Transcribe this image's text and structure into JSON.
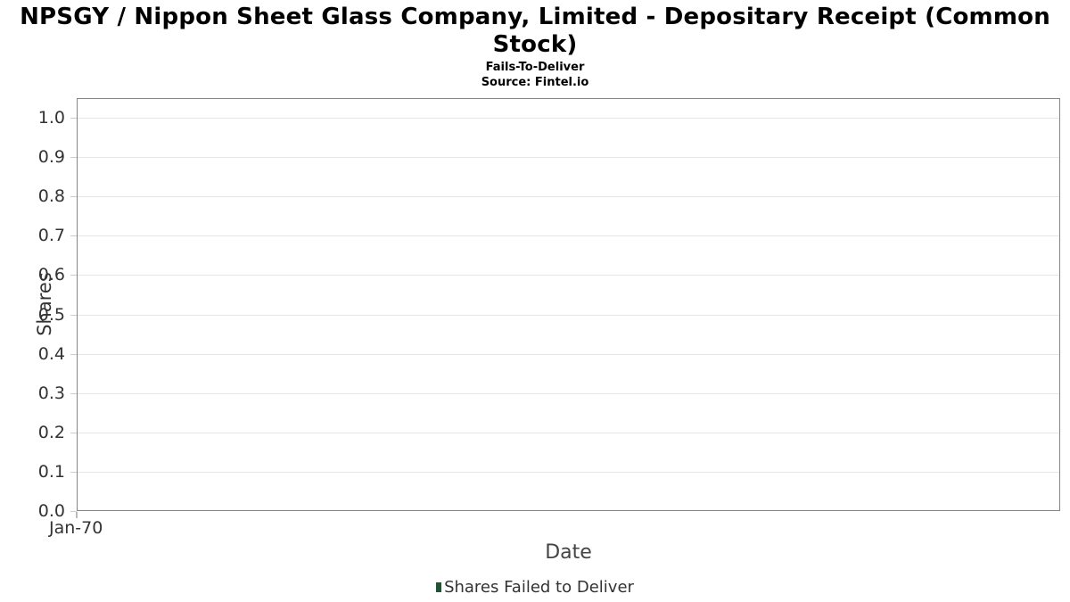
{
  "chart_data": {
    "type": "bar",
    "title": "NPSGY / Nippon Sheet Glass Company, Limited - Depositary Receipt (Common Stock)",
    "title_lines": [
      "NPSGY / Nippon Sheet Glass Company, Limited - Depositary Receipt (Common",
      "Stock)"
    ],
    "subtitle": "Fails-To-Deliver",
    "source": "Source: Fintel.io",
    "xlabel": "Date",
    "ylabel": "Shares",
    "x_ticks": [
      "Jan-70"
    ],
    "y_ticks": [
      "0.0",
      "0.1",
      "0.2",
      "0.3",
      "0.4",
      "0.5",
      "0.6",
      "0.7",
      "0.8",
      "0.9",
      "1.0"
    ],
    "ylim": [
      0,
      1.05
    ],
    "grid": true,
    "legend_position": "bottom",
    "series": [
      {
        "name": "Shares Failed to Deliver",
        "type": "bar",
        "color": "#1e5631",
        "x": [],
        "values": []
      }
    ],
    "colors": {
      "grid": "#e6e6e6",
      "spine": "#848484",
      "tick": "#cccccc",
      "axis_text": "#333333",
      "title_text": "#000000"
    }
  }
}
